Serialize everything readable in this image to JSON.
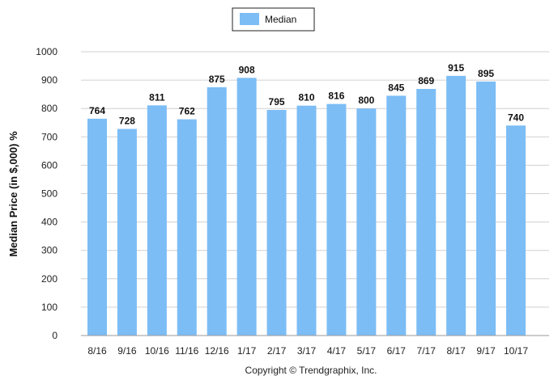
{
  "chart_data": {
    "type": "bar",
    "categories": [
      "8/16",
      "9/16",
      "10/16",
      "11/16",
      "12/16",
      "1/17",
      "2/17",
      "3/17",
      "4/17",
      "5/17",
      "6/17",
      "7/17",
      "8/17",
      "9/17",
      "10/17"
    ],
    "series": [
      {
        "name": "Median",
        "values": [
          764,
          728,
          811,
          762,
          875,
          908,
          795,
          810,
          816,
          800,
          845,
          869,
          915,
          895,
          740
        ]
      }
    ],
    "data_labels": [
      "764",
      "728",
      "811",
      "762",
      "875",
      "908",
      "795",
      "810",
      "816",
      "800",
      "845",
      "869",
      "915",
      "895",
      "740"
    ],
    "ylabel": "Median Price (in $,000) %",
    "xlabel": "",
    "ylim": [
      0,
      1000
    ],
    "yticks": [
      0,
      100,
      200,
      300,
      400,
      500,
      600,
      700,
      800,
      900,
      1000
    ],
    "ytick_labels": [
      "0",
      "100",
      "200",
      "300",
      "400",
      "500",
      "600",
      "700",
      "800",
      "900",
      "1000"
    ],
    "grid": true,
    "legend_position": "top-center",
    "bar_color": "#7cbdf5",
    "grid_color": "#d0d0d0"
  },
  "footer": {
    "copyright": "Copyright © Trendgraphix, Inc."
  }
}
